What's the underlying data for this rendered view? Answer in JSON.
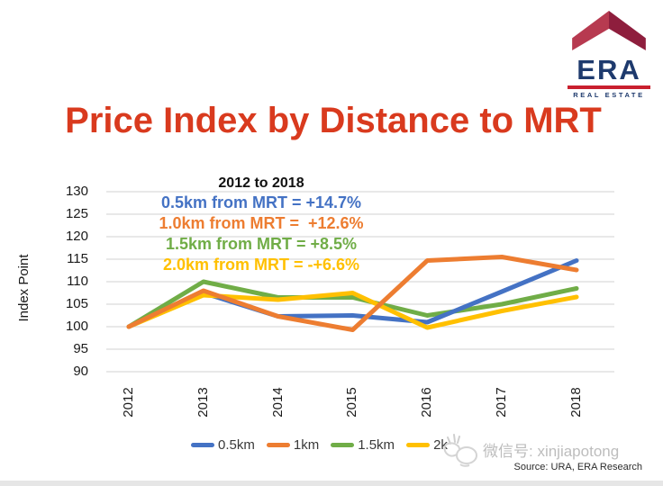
{
  "logo": {
    "brand": "ERA",
    "tagline": "REAL ESTATE",
    "roof_left_color": "#b73a50",
    "roof_right_color": "#8e1e3d",
    "text_color": "#1e3a6d",
    "bar_color": "#c9202e"
  },
  "title": {
    "text": "Price Index by Distance to MRT",
    "color": "#d93a1e"
  },
  "annotation": {
    "heading": "2012 to 2018",
    "lines": [
      {
        "text": "0.5km from MRT = +14.7%",
        "color": "#4472c4"
      },
      {
        "text": "1.0km from MRT =  +12.6%",
        "color": "#ed7d31"
      },
      {
        "text": "1.5km from MRT = +8.5%",
        "color": "#70ad47"
      },
      {
        "text": "2.0km from MRT = -+6.6%",
        "color": "#ffc000"
      }
    ]
  },
  "chart_data": {
    "type": "line",
    "x": [
      2012,
      2013,
      2014,
      2015,
      2016,
      2017,
      2018
    ],
    "series": [
      {
        "name": "0.5km",
        "color": "#4472c4",
        "values": [
          100,
          107.5,
          102.3,
          102.5,
          101,
          107.8,
          114.7
        ]
      },
      {
        "name": "1km",
        "color": "#ed7d31",
        "values": [
          100,
          108,
          102.3,
          99.3,
          114.7,
          115.5,
          112.6
        ]
      },
      {
        "name": "1.5km",
        "color": "#70ad47",
        "values": [
          100,
          110,
          106.5,
          106.5,
          102.5,
          105,
          108.5
        ]
      },
      {
        "name": "2km",
        "color": "#ffc000",
        "values": [
          100,
          107,
          106,
          107.5,
          99.8,
          103.5,
          106.6
        ]
      }
    ],
    "draw_order": [
      "1.5km",
      "0.5km",
      "2km",
      "1km"
    ],
    "ylabel": "Index Point",
    "yticks": [
      130,
      125,
      120,
      115,
      110,
      105,
      100,
      95,
      90
    ],
    "ylim": [
      90,
      130
    ],
    "grid": true,
    "gridline_color": "#d9d9d9",
    "legend_position": "bottom",
    "legend_labels": [
      "0.5km",
      "1km",
      "1.5km",
      "2k"
    ]
  },
  "watermark": {
    "text": "微信号: xinjiapotong",
    "color": "#bdbdbd"
  },
  "source": {
    "text": "Source: URA, ERA Research"
  }
}
